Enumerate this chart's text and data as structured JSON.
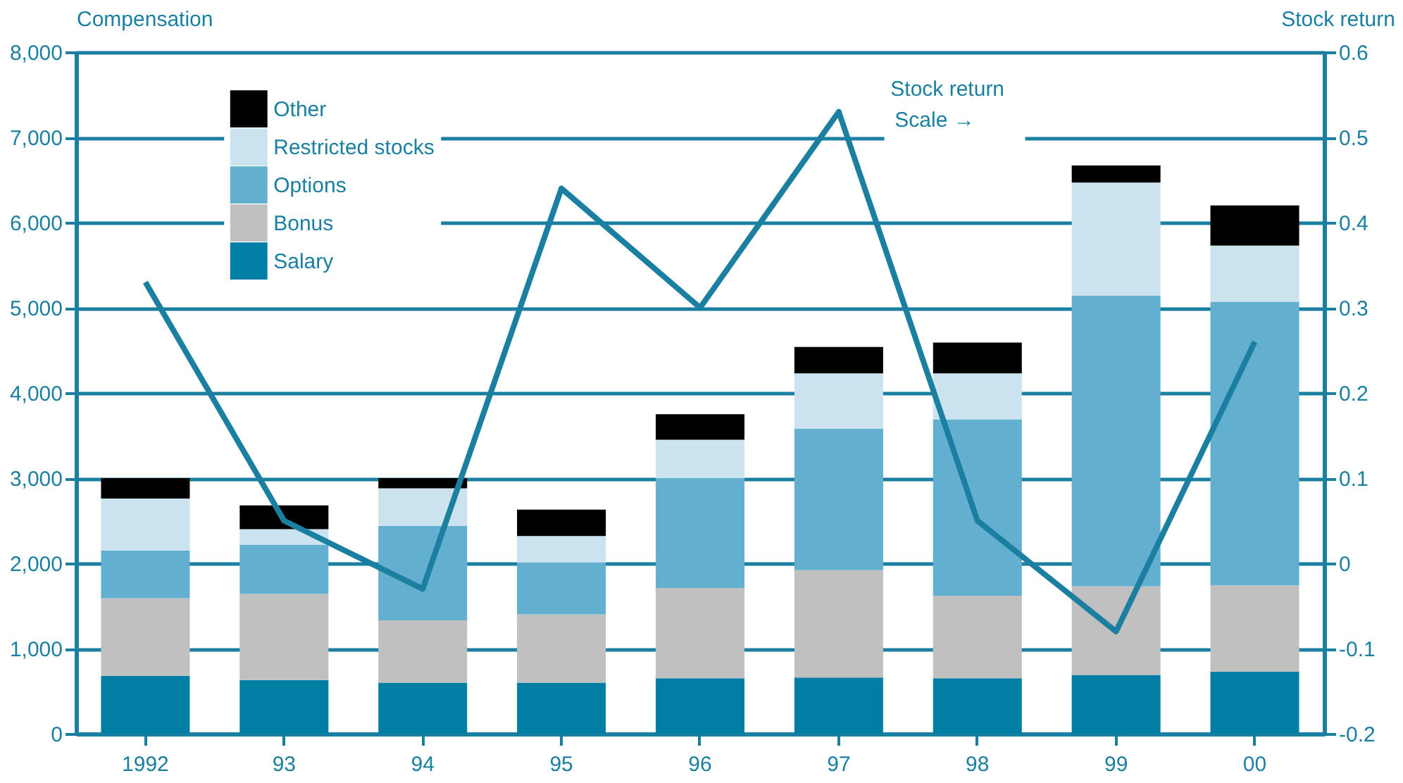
{
  "chart_data": {
    "type": "bar",
    "stacked": true,
    "categories": [
      "1992",
      "93",
      "94",
      "95",
      "96",
      "97",
      "98",
      "99",
      "00"
    ],
    "series": [
      {
        "name": "Salary",
        "color": "#007ea3",
        "values": [
          680,
          630,
          600,
          600,
          650,
          660,
          650,
          690,
          730
        ]
      },
      {
        "name": "Bonus",
        "color": "#c0c0c0",
        "values": [
          910,
          1010,
          730,
          800,
          1060,
          1260,
          970,
          1040,
          1010
        ]
      },
      {
        "name": "Options",
        "color": "#63afd0",
        "values": [
          560,
          580,
          1110,
          610,
          1290,
          1660,
          2070,
          3410,
          3330
        ]
      },
      {
        "name": "Restricted stocks",
        "color": "#cbe3ee",
        "values": [
          610,
          180,
          440,
          310,
          450,
          650,
          540,
          1330,
          660
        ]
      },
      {
        "name": "Other",
        "color": "#000000",
        "values": [
          240,
          280,
          120,
          310,
          300,
          310,
          360,
          200,
          470
        ]
      },
      {
        "type": "line",
        "axis": "y2",
        "color": "#1a7fa0",
        "values": [
          0.33,
          0.05,
          -0.03,
          0.44,
          0.3,
          0.53,
          0.05,
          -0.08,
          0.26
        ]
      }
    ],
    "ylabel": "Compensation",
    "y2label": "Stock return",
    "ylim": [
      0,
      8000
    ],
    "yticks": [
      0,
      {
        "value": 1000,
        "label": "1,000"
      },
      {
        "value": 2000,
        "label": "2,000"
      },
      {
        "value": 3000,
        "label": "3,000"
      },
      {
        "value": 4000,
        "label": "4,000"
      },
      {
        "value": 5000,
        "label": "5,000"
      },
      {
        "value": 6000,
        "label": "6,000"
      },
      {
        "value": 7000,
        "label": "7,000"
      },
      {
        "value": 8000,
        "label": "8,000"
      }
    ],
    "y2lim": [
      -0.2,
      0.6
    ],
    "y2ticks": [
      -0.2,
      -0.1,
      0,
      0.1,
      0.2,
      0.3,
      0.4,
      0.5,
      0.6
    ],
    "annotations": [
      "Stock return",
      "Scale →"
    ],
    "grid": "y",
    "legend": "top left",
    "marker": "none",
    "line_style": "solid"
  }
}
